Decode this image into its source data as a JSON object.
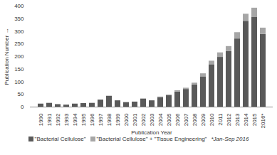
{
  "chart_data": {
    "type": "bar",
    "stacked": true,
    "grid": false,
    "x_label": "Publication Year",
    "y_label": "Publication Number",
    "categories": [
      "1990",
      "1991",
      "1992",
      "1993",
      "1994",
      "1995",
      "1996",
      "1997",
      "1998",
      "1999",
      "2000",
      "2001",
      "2002",
      "2003",
      "2004",
      "2005",
      "2006",
      "2007",
      "2008",
      "2009",
      "2010",
      "2011",
      "2012",
      "2013",
      "2014",
      "2015",
      "2016*"
    ],
    "series": [
      {
        "name": "\"Bacterial Cellulose\"",
        "color": "#595959",
        "values": [
          12,
          15,
          10,
          8,
          12,
          14,
          15,
          28,
          43,
          25,
          18,
          20,
          32,
          25,
          38,
          45,
          60,
          70,
          88,
          120,
          168,
          197,
          220,
          270,
          340,
          355,
          288
        ]
      },
      {
        "name": "\"Bacterial Cellulose\" + \"Tissue Engineering\"",
        "color": "#a6a6a6",
        "values": [
          0,
          0,
          0,
          0,
          0,
          0,
          0,
          0,
          0,
          0,
          0,
          0,
          0,
          0,
          2,
          3,
          5,
          5,
          7,
          12,
          14,
          18,
          20,
          25,
          28,
          37,
          25
        ]
      }
    ],
    "ylim": [
      0,
      400
    ],
    "yticks": [
      0,
      50,
      100,
      150,
      200,
      250,
      300,
      350,
      400
    ],
    "annotations": [
      "*Jan-Sep 2016"
    ]
  }
}
